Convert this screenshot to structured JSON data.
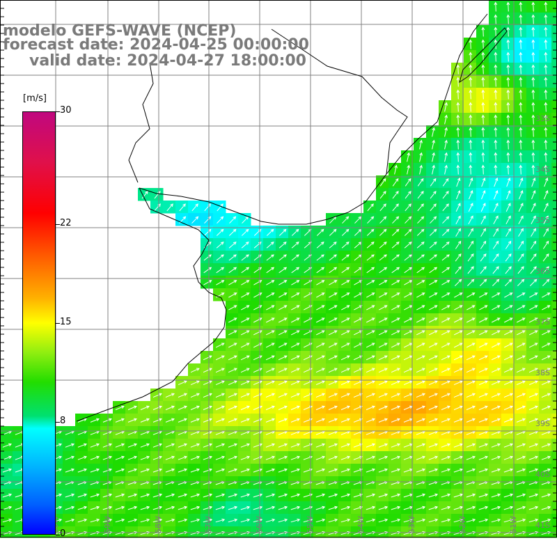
{
  "title": {
    "line1": "modelo GEFS-WAVE (NCEP)",
    "line2": "forecast date: 2024-04-25 00:00:00",
    "line3": "valid date: 2024-04-27 18:00:00"
  },
  "colorbar": {
    "unit": "[m/s]",
    "ticks": [
      "30",
      "22",
      "15",
      "8",
      "0"
    ],
    "tick_values": [
      30,
      22,
      15,
      8,
      0
    ]
  },
  "grid": {
    "lat_labels": [
      "33S",
      "34S",
      "35S",
      "36S",
      "37S",
      "38S",
      "39S",
      "40S",
      "41S"
    ],
    "lon_labels": [
      "60W",
      "59W",
      "58W",
      "57W",
      "56W",
      "55W",
      "54W",
      "53W",
      "52W",
      "51W"
    ]
  },
  "colors": {
    "land": "#ffffff",
    "gridline": "#808080",
    "coast": "#000000",
    "arrows": "#ffffff"
  }
}
